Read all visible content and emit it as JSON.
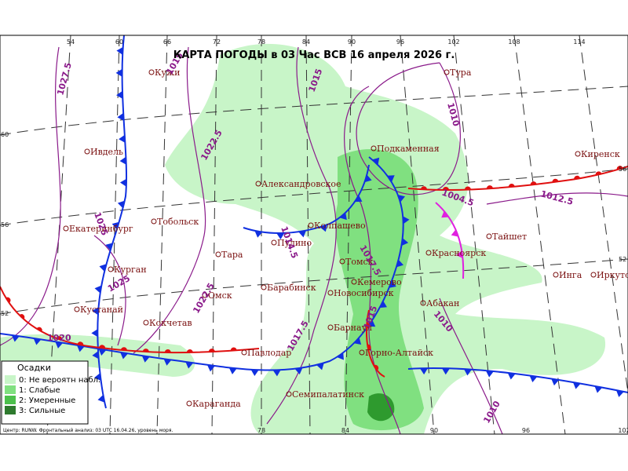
{
  "title": "КАРТА ПОГОДЫ в 03 Час ВСВ 16 апреля 2026 г.",
  "cities": [
    "Тура",
    "Кужи",
    "Ивдель",
    "Подкаменная",
    "Киренск",
    "Александровское",
    "Екатеринбург",
    "Тобольск",
    "Колпашево",
    "Тайшет",
    "Пудино",
    "Тара",
    "Томск",
    "Красноярск",
    "Кемерово",
    "Инга",
    "Иркутск",
    "Курган",
    "Барабинск",
    "Новосибирск",
    "Омск",
    "Абакан",
    "Кустанай",
    "Кокчетав",
    "Барнаул",
    "Павлодар",
    "Горно-Алтайск",
    "Семипалатинск",
    "Караганда"
  ],
  "isobar_labels": [
    "1027.5",
    "1022.5",
    "1015",
    "1010",
    "1025",
    "1014.5",
    "1017.5",
    "1025",
    "1022.5",
    "1020",
    "1017.5",
    "1015",
    "1010",
    "1012.5",
    "1004.5",
    "1010",
    "1015"
  ],
  "grid_labels": {
    "top": [
      "54",
      "60",
      "66",
      "72",
      "78",
      "84",
      "90",
      "96",
      "102",
      "108",
      "114"
    ],
    "bottom": [
      "78",
      "84",
      "90",
      "96",
      "102"
    ],
    "left": [
      "60",
      "56",
      "52"
    ],
    "right": [
      "56",
      "52"
    ]
  },
  "legend": {
    "title": "Осадки",
    "items": [
      "0: Не вероятн набл.",
      "1: Слабые",
      "2: Умеренные",
      "3: Сильные"
    ]
  },
  "footer": "Центр: RUNW. Фронтальный анализ: 03 UTC 16.04.26, уровень моря."
}
